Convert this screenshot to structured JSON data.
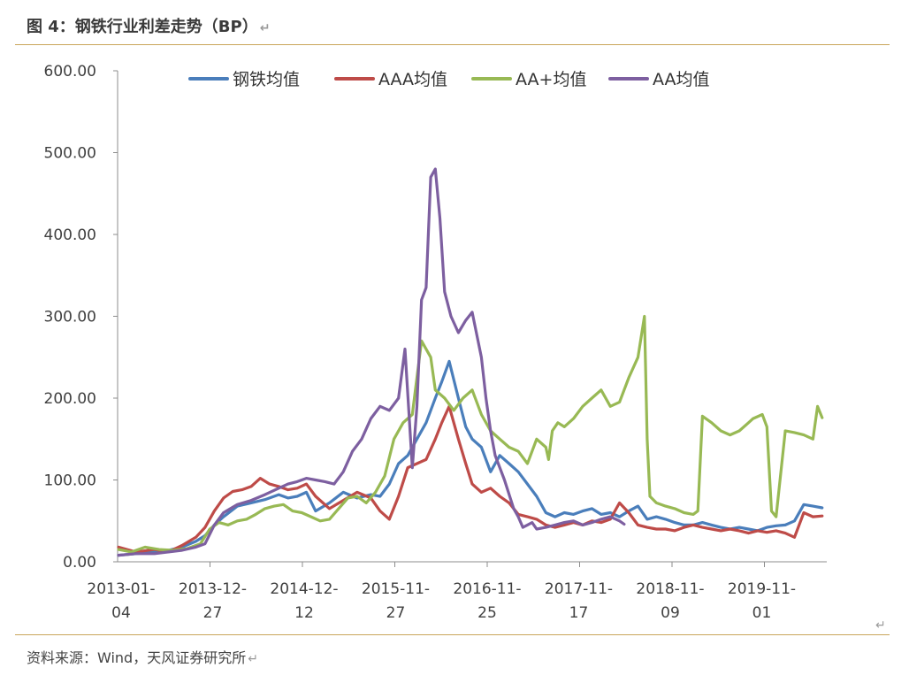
{
  "header": {
    "title": "图 4：钢铁行业利差走势（BP）",
    "return_mark": "↵"
  },
  "footer": {
    "source": "资料来源：Wind，天风证券研究所",
    "return_mark": "↵"
  },
  "chart_data": {
    "type": "line",
    "title": "",
    "xlabel": "",
    "ylabel": "",
    "ylim": [
      0,
      600
    ],
    "yticks": [
      "0.00",
      "100.00",
      "200.00",
      "300.00",
      "400.00",
      "500.00",
      "600.00"
    ],
    "xticks": [
      {
        "line1": "2013-01-",
        "line2": "04"
      },
      {
        "line1": "2013-12-",
        "line2": "27"
      },
      {
        "line1": "2014-12-",
        "line2": "12"
      },
      {
        "line1": "2015-11-",
        "line2": "27"
      },
      {
        "line1": "2016-11-",
        "line2": "25"
      },
      {
        "line1": "2017-11-",
        "line2": "17"
      },
      {
        "line1": "2018-11-",
        "line2": "09"
      },
      {
        "line1": "2019-11-",
        "line2": "01"
      }
    ],
    "grid": false,
    "legend": "top",
    "colors": {
      "钢铁均值": "#4a7ebb",
      "AAA均值": "#be4b48",
      "AA+均值": "#98b954",
      "AA均值": "#7d5fa0"
    },
    "series": [
      {
        "name": "钢铁均值",
        "x": [
          2013.01,
          2013.2,
          2013.4,
          2013.55,
          2013.7,
          2013.85,
          2013.95,
          2014.05,
          2014.15,
          2014.3,
          2014.45,
          2014.6,
          2014.75,
          2014.85,
          2014.95,
          2015.05,
          2015.15,
          2015.3,
          2015.45,
          2015.6,
          2015.75,
          2015.85,
          2015.95,
          2016.05,
          2016.15,
          2016.25,
          2016.35,
          2016.45,
          2016.52,
          2016.6,
          2016.7,
          2016.78,
          2016.85,
          2016.95,
          2017.0,
          2017.05,
          2017.15,
          2017.25,
          2017.35,
          2017.45,
          2017.55,
          2017.65,
          2017.75,
          2017.85,
          2017.95,
          2018.05,
          2018.15,
          2018.25,
          2018.35,
          2018.45,
          2018.55,
          2018.65,
          2018.75,
          2018.85,
          2018.95,
          2019.05,
          2019.15,
          2019.25,
          2019.35,
          2019.45,
          2019.55,
          2019.65,
          2019.75,
          2019.85,
          2019.95,
          2020.05,
          2020.15,
          2020.25,
          2020.35,
          2020.45,
          2020.55,
          2020.65
        ],
        "y": [
          8,
          10,
          12,
          14,
          18,
          25,
          32,
          45,
          55,
          68,
          72,
          76,
          82,
          78,
          80,
          85,
          62,
          72,
          85,
          78,
          82,
          80,
          95,
          120,
          130,
          150,
          170,
          200,
          220,
          245,
          200,
          165,
          150,
          140,
          125,
          110,
          130,
          120,
          110,
          95,
          80,
          60,
          55,
          60,
          58,
          62,
          65,
          58,
          60,
          55,
          62,
          68,
          52,
          55,
          52,
          48,
          45,
          45,
          48,
          45,
          42,
          40,
          42,
          40,
          38,
          42,
          44,
          45,
          50,
          70,
          68,
          66
        ]
      },
      {
        "name": "AAA均值",
        "x": [
          2013.01,
          2013.2,
          2013.4,
          2013.55,
          2013.7,
          2013.85,
          2013.95,
          2014.05,
          2014.15,
          2014.25,
          2014.35,
          2014.45,
          2014.55,
          2014.65,
          2014.75,
          2014.85,
          2014.95,
          2015.05,
          2015.15,
          2015.3,
          2015.45,
          2015.6,
          2015.75,
          2015.85,
          2015.95,
          2016.05,
          2016.15,
          2016.25,
          2016.35,
          2016.45,
          2016.52,
          2016.6,
          2016.7,
          2016.78,
          2016.85,
          2016.95,
          2017.05,
          2017.15,
          2017.25,
          2017.35,
          2017.45,
          2017.55,
          2017.65,
          2017.75,
          2017.85,
          2017.95,
          2018.05,
          2018.15,
          2018.25,
          2018.35,
          2018.45,
          2018.55,
          2018.65,
          2018.75,
          2018.85,
          2018.95,
          2019.05,
          2019.15,
          2019.25,
          2019.35,
          2019.45,
          2019.55,
          2019.65,
          2019.75,
          2019.85,
          2019.95,
          2020.05,
          2020.15,
          2020.25,
          2020.35,
          2020.45,
          2020.55,
          2020.65
        ],
        "y": [
          18,
          12,
          15,
          12,
          20,
          30,
          42,
          62,
          78,
          86,
          88,
          92,
          102,
          95,
          92,
          88,
          90,
          95,
          80,
          65,
          75,
          85,
          78,
          62,
          52,
          80,
          115,
          120,
          125,
          150,
          170,
          190,
          150,
          120,
          95,
          85,
          90,
          80,
          72,
          58,
          55,
          52,
          45,
          42,
          45,
          48,
          45,
          50,
          48,
          52,
          72,
          60,
          45,
          42,
          40,
          40,
          38,
          42,
          45,
          42,
          40,
          38,
          40,
          38,
          35,
          38,
          36,
          38,
          35,
          30,
          60,
          55,
          56
        ]
      },
      {
        "name": "AA+均值",
        "x": [
          2013.01,
          2013.15,
          2013.3,
          2013.45,
          2013.6,
          2013.75,
          2013.9,
          2014.0,
          2014.1,
          2014.2,
          2014.3,
          2014.4,
          2014.5,
          2014.6,
          2014.7,
          2014.8,
          2014.9,
          2015.0,
          2015.1,
          2015.2,
          2015.3,
          2015.4,
          2015.5,
          2015.6,
          2015.7,
          2015.8,
          2015.9,
          2016.0,
          2016.1,
          2016.2,
          2016.3,
          2016.4,
          2016.45,
          2016.55,
          2016.65,
          2016.75,
          2016.85,
          2016.95,
          2017.05,
          2017.15,
          2017.25,
          2017.35,
          2017.45,
          2017.55,
          2017.65,
          2017.68,
          2017.72,
          2017.78,
          2017.85,
          2017.95,
          2018.05,
          2018.15,
          2018.25,
          2018.35,
          2018.45,
          2018.55,
          2018.65,
          2018.72,
          2018.75,
          2018.78,
          2018.85,
          2018.95,
          2019.05,
          2019.15,
          2019.25,
          2019.3,
          2019.35,
          2019.45,
          2019.55,
          2019.65,
          2019.75,
          2019.85,
          2019.9,
          2020.0,
          2020.05,
          2020.1,
          2020.15,
          2020.25,
          2020.35,
          2020.45,
          2020.55,
          2020.6,
          2020.65
        ],
        "y": [
          15,
          12,
          18,
          15,
          14,
          16,
          22,
          40,
          48,
          45,
          50,
          52,
          58,
          65,
          68,
          70,
          62,
          60,
          55,
          50,
          52,
          65,
          78,
          80,
          72,
          85,
          105,
          150,
          170,
          180,
          270,
          250,
          210,
          200,
          185,
          200,
          210,
          180,
          160,
          150,
          140,
          135,
          120,
          150,
          140,
          125,
          160,
          170,
          165,
          175,
          190,
          200,
          210,
          190,
          195,
          225,
          250,
          300,
          150,
          80,
          72,
          68,
          65,
          60,
          58,
          62,
          178,
          170,
          160,
          155,
          160,
          170,
          175,
          180,
          165,
          62,
          55,
          160,
          158,
          155,
          150,
          190,
          176
        ]
      },
      {
        "name": "AA均值",
        "x": [
          2013.01,
          2013.2,
          2013.4,
          2013.55,
          2013.7,
          2013.85,
          2013.95,
          2014.05,
          2014.15,
          2014.3,
          2014.45,
          2014.6,
          2014.75,
          2014.85,
          2014.95,
          2015.05,
          2015.15,
          2015.25,
          2015.35,
          2015.45,
          2015.55,
          2015.65,
          2015.75,
          2015.85,
          2015.95,
          2016.05,
          2016.12,
          2016.2,
          2016.25,
          2016.3,
          2016.35,
          2016.4,
          2016.45,
          2016.5,
          2016.55,
          2016.62,
          2016.7,
          2016.78,
          2016.85,
          2016.95,
          2017.0,
          2017.05,
          2017.1,
          2017.2,
          2017.3,
          2017.35,
          2017.4,
          2017.45,
          2017.5,
          2017.55,
          2017.65,
          2017.75,
          2017.85,
          2017.95,
          2018.05,
          2018.15,
          2018.25,
          2018.35,
          2018.45,
          2018.5
        ],
        "y": [
          8,
          10,
          10,
          12,
          14,
          18,
          22,
          45,
          60,
          70,
          75,
          82,
          90,
          95,
          98,
          102,
          100,
          98,
          95,
          110,
          135,
          150,
          175,
          190,
          185,
          200,
          260,
          115,
          190,
          320,
          335,
          470,
          480,
          420,
          330,
          300,
          280,
          295,
          305,
          250,
          200,
          160,
          130,
          100,
          65,
          55,
          42,
          45,
          48,
          40,
          42,
          45,
          48,
          50,
          45,
          48,
          52,
          55,
          50,
          46
        ]
      }
    ]
  }
}
